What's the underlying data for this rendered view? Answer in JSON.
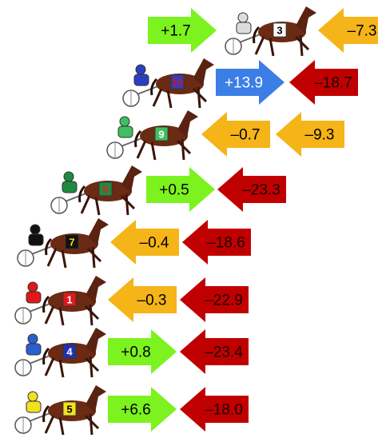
{
  "rows": [
    {
      "number": "3",
      "saddle": "#ffffff",
      "saddle_text": "#000000",
      "driver": "#dddddd",
      "arrows": [
        {
          "label": "+1.7",
          "color": "#7cf21e",
          "direction": "right"
        },
        {
          "label": "–7.3",
          "color": "#f5b418",
          "direction": "left"
        }
      ]
    },
    {
      "number": "10",
      "saddle": "#2a3fc0",
      "saddle_text": "#e01010",
      "driver": "#2a3fc0",
      "arrows": [
        {
          "label": "+13.9",
          "color": "#3b7fe6",
          "direction": "right"
        },
        {
          "label": "–18.7",
          "color": "#c00000",
          "direction": "left"
        }
      ]
    },
    {
      "number": "9",
      "saddle": "#3fbf5f",
      "saddle_text": "#ffffff",
      "driver": "#3fbf5f",
      "arrows": [
        {
          "label": "–0.7",
          "color": "#f5b418",
          "direction": "left"
        },
        {
          "label": "–9.3",
          "color": "#f5b418",
          "direction": "left"
        }
      ]
    },
    {
      "number": "6",
      "saddle": "#1f8a3f",
      "saddle_text": "#e02020",
      "driver": "#1f8a3f",
      "arrows": [
        {
          "label": "+0.5",
          "color": "#7cf21e",
          "direction": "right"
        },
        {
          "label": "–23.3",
          "color": "#c00000",
          "direction": "left"
        }
      ]
    },
    {
      "number": "7",
      "saddle": "#111111",
      "saddle_text": "#ffe000",
      "driver": "#111111",
      "arrows": [
        {
          "label": "–0.4",
          "color": "#f5b418",
          "direction": "left"
        },
        {
          "label": "–18.6",
          "color": "#c00000",
          "direction": "left"
        }
      ]
    },
    {
      "number": "1",
      "saddle": "#e01818",
      "saddle_text": "#ffffff",
      "driver": "#e01818",
      "arrows": [
        {
          "label": "–0.3",
          "color": "#f5b418",
          "direction": "left"
        },
        {
          "label": "–22.9",
          "color": "#c00000",
          "direction": "left"
        }
      ]
    },
    {
      "number": "4",
      "saddle": "#2030b0",
      "saddle_text": "#ffffff",
      "driver": "#2a5fd0",
      "arrows": [
        {
          "label": "+0.8",
          "color": "#7cf21e",
          "direction": "right"
        },
        {
          "label": "–23.4",
          "color": "#c00000",
          "direction": "left"
        }
      ]
    },
    {
      "number": "5",
      "saddle": "#f0e020",
      "saddle_text": "#000000",
      "driver": "#f0e020",
      "arrows": [
        {
          "label": "+6.6",
          "color": "#7cf21e",
          "direction": "right"
        },
        {
          "label": "–18.0",
          "color": "#c00000",
          "direction": "left"
        }
      ]
    }
  ]
}
